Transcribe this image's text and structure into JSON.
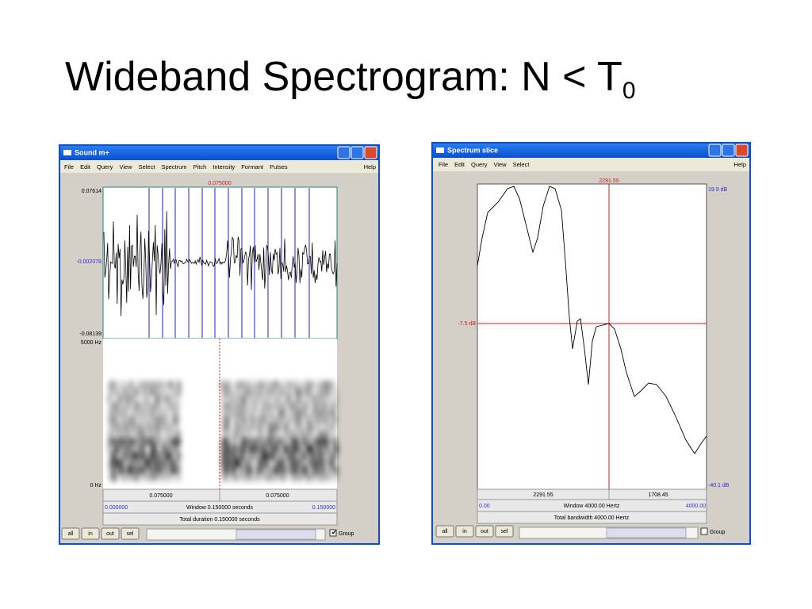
{
  "title": {
    "text": "Wideband Spectrogram: N < T",
    "subscript": "0"
  },
  "windows": [
    {
      "title": "Sound m+",
      "menu": [
        "File",
        "Edit",
        "Query",
        "View",
        "Select",
        "Spectrum",
        "Pitch",
        "Intensity",
        "Formant",
        "Pulses",
        "Help"
      ],
      "cursor_label": "0.075000",
      "y_labels": {
        "top": "0.07614",
        "middle": "-0.002078",
        "bottom": "-0.08139"
      },
      "freq_labels": {
        "top": "5000 Hz",
        "bottom": "0 Hz"
      },
      "selection": [
        "0.075000",
        "0.075000"
      ],
      "window_row": {
        "start": "0.000000",
        "label": "Window 0.150000 seconds",
        "end": "0.150000"
      },
      "total_row": "Total duration 0.150000 seconds",
      "buttons": [
        "all",
        "in",
        "out",
        "sel"
      ],
      "checkbox": "Group"
    },
    {
      "title": "Spectrum slice",
      "menu": [
        "File",
        "Edit",
        "Query",
        "View",
        "Select",
        "Help"
      ],
      "cursor_label": "2291.55",
      "y_labels": {
        "top": "19.9 dB",
        "cursor": "-7.5 dB",
        "bottom": "-40.1 dB"
      },
      "selection": [
        "2291.55",
        "1708.45"
      ],
      "window_row": {
        "start": "0.00",
        "label": "Window 4000.00 Hertz",
        "end": "4000.00"
      },
      "total_row": "Total bandwidth 4000.00 Hertz",
      "buttons": [
        "all",
        "in",
        "out",
        "sel"
      ],
      "checkbox": "Group"
    }
  ]
}
